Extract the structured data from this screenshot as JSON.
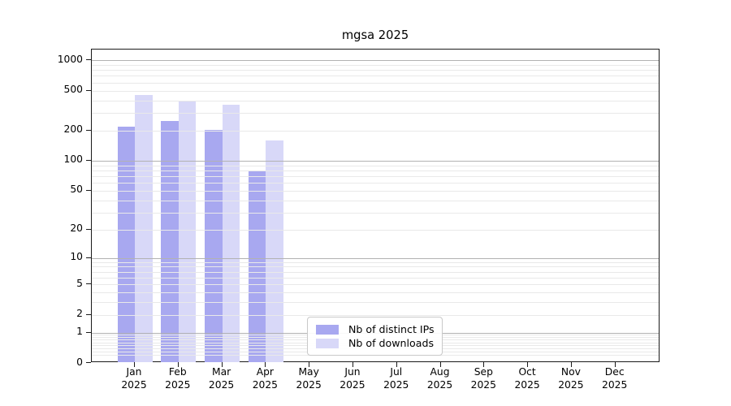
{
  "chart_data": {
    "type": "bar",
    "title": "mgsa 2025",
    "categories": [
      "Jan",
      "Feb",
      "Mar",
      "Apr",
      "May",
      "Jun",
      "Jul",
      "Aug",
      "Sep",
      "Oct",
      "Nov",
      "Dec"
    ],
    "x_year_label": "2025",
    "series": [
      {
        "name": "Nb of distinct IPs",
        "color": "#a8a8f0",
        "values": [
          220,
          250,
          205,
          78,
          null,
          null,
          null,
          null,
          null,
          null,
          null,
          null
        ]
      },
      {
        "name": "Nb of downloads",
        "color": "#d8d8f8",
        "values": [
          450,
          400,
          360,
          158,
          null,
          null,
          null,
          null,
          null,
          null,
          null,
          null
        ]
      }
    ],
    "yticks": [
      0,
      1,
      2,
      5,
      10,
      20,
      50,
      100,
      200,
      500,
      1000
    ],
    "yscale": "log1p",
    "ylim": [
      0,
      1280
    ],
    "grid": "on",
    "legend_position": "lower center inside axes",
    "colors": {
      "major_grid": "#b2b2b2",
      "minor_grid": "#e9e9e9",
      "axis": "#1a1a1a",
      "text": "#000000"
    }
  }
}
